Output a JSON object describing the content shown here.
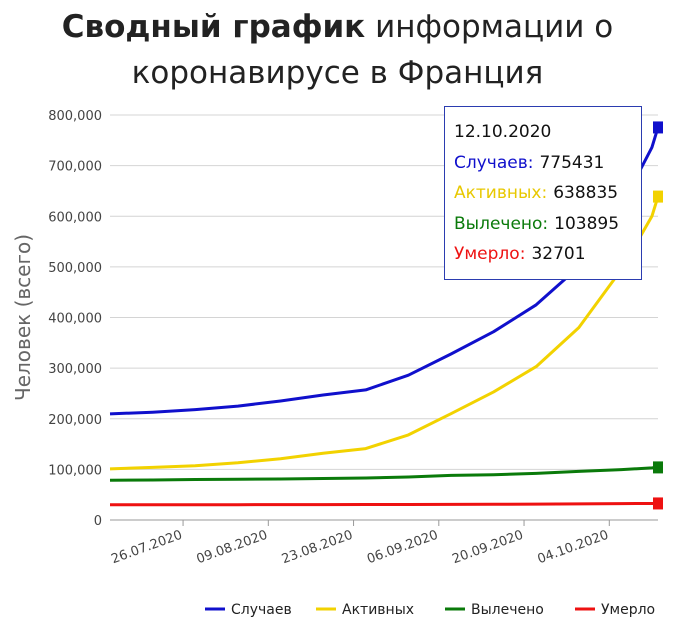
{
  "title_bold": "Сводный график",
  "title_rest": "информации о",
  "title_line2": "коронавирусе в Франция",
  "tooltip": {
    "date": "12.10.2020",
    "rows": [
      {
        "label": "Случаев:",
        "value": "775431",
        "color": "#1010cc"
      },
      {
        "label": "Активных:",
        "value": "638835",
        "color": "#e8c800"
      },
      {
        "label": "Вылечено:",
        "value": "103895",
        "color": "#0a7a0a"
      },
      {
        "label": "Умерло:",
        "value": "32701",
        "color": "#ee1111"
      }
    ]
  },
  "chart_data": {
    "type": "line",
    "ylabel": "Человек (всего)",
    "xlabel": "",
    "ylim": [
      0,
      800000
    ],
    "yticks": [
      0,
      100000,
      200000,
      300000,
      400000,
      500000,
      600000,
      700000,
      800000
    ],
    "ytick_labels": [
      "0",
      "100,000",
      "200,000",
      "300,000",
      "400,000",
      "500,000",
      "600,000",
      "700,000",
      "800,000"
    ],
    "xlim": [
      "2020-07-14",
      "2020-10-12"
    ],
    "xticks": [
      "2020-07-26",
      "2020-08-09",
      "2020-08-23",
      "2020-09-06",
      "2020-09-20",
      "2020-10-04"
    ],
    "xtick_labels": [
      "26.07.2020",
      "09.08.2020",
      "23.08.2020",
      "06.09.2020",
      "20.09.2020",
      "04.10.2020"
    ],
    "grid": true,
    "legend": "bottom-right",
    "x": [
      "2020-07-14",
      "2020-07-21",
      "2020-07-28",
      "2020-08-04",
      "2020-08-11",
      "2020-08-18",
      "2020-08-25",
      "2020-09-01",
      "2020-09-08",
      "2020-09-15",
      "2020-09-22",
      "2020-09-29",
      "2020-10-06",
      "2020-10-11",
      "2020-10-12"
    ],
    "series": [
      {
        "name": "Случаев",
        "color": "#1010cc",
        "values": [
          209500,
          213000,
          218000,
          225000,
          235000,
          247000,
          257000,
          286000,
          328000,
          372000,
          425000,
          500000,
          620000,
          736000,
          775431
        ]
      },
      {
        "name": "Активных",
        "color": "#f2d200",
        "values": [
          101000,
          104000,
          107000,
          113000,
          121000,
          132000,
          141000,
          168000,
          210000,
          253000,
          303000,
          380000,
          495000,
          600000,
          638835
        ]
      },
      {
        "name": "Вылечено",
        "color": "#0a7a0a",
        "values": [
          78500,
          79000,
          80000,
          80500,
          81000,
          82000,
          83000,
          85000,
          88000,
          89500,
          92000,
          96000,
          99500,
          103000,
          103895
        ]
      },
      {
        "name": "Умерло",
        "color": "#ee1111",
        "values": [
          30000,
          30100,
          30200,
          30300,
          30400,
          30500,
          30600,
          30700,
          30900,
          31100,
          31400,
          31900,
          32300,
          32600,
          32701
        ]
      }
    ]
  }
}
